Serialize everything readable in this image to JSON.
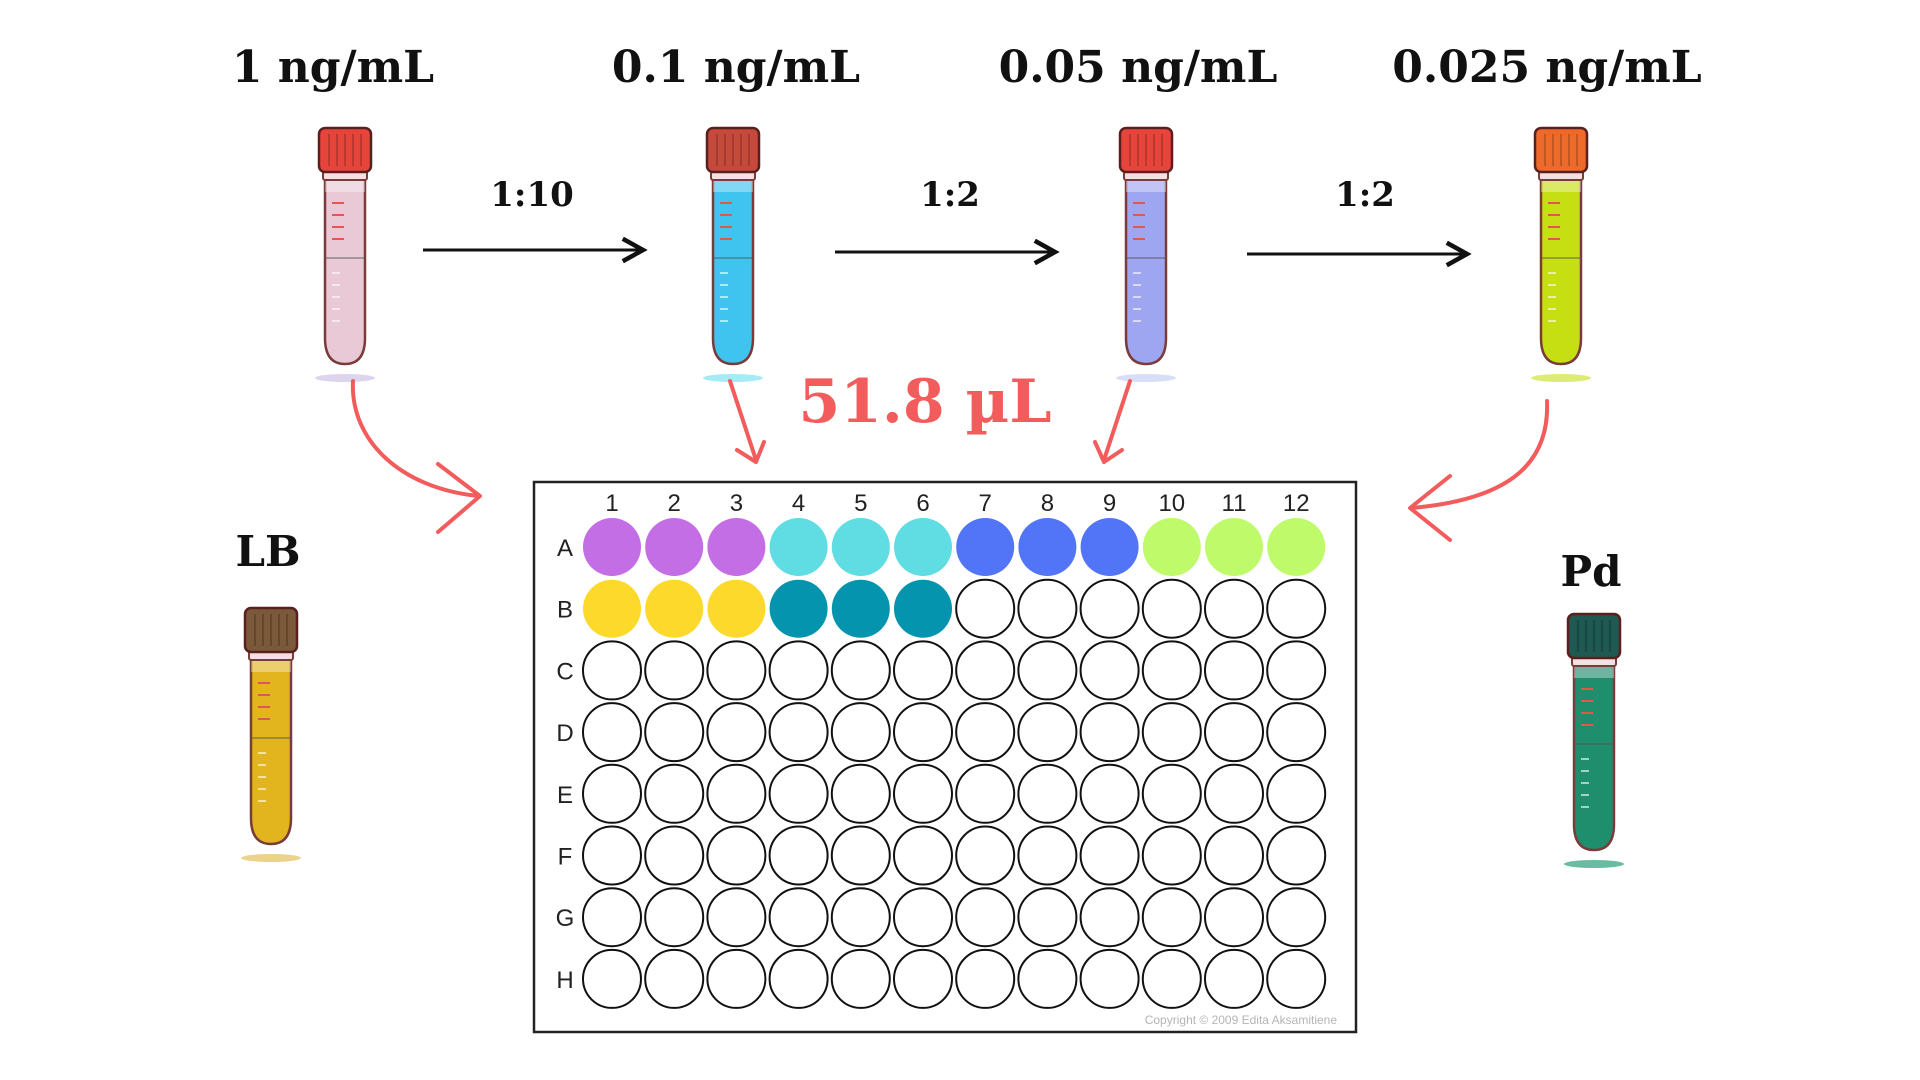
{
  "concentrations": [
    "1 ng/mL",
    "0.1 ng/mL",
    "0.05 ng/mL",
    "0.025 ng/mL"
  ],
  "dilutions": [
    "1:10",
    "1:2",
    "1:2"
  ],
  "volume": "51.8 µL",
  "side_labels": {
    "left": "LB",
    "right": "Pd"
  },
  "plate": {
    "columns": [
      "1",
      "2",
      "3",
      "4",
      "5",
      "6",
      "7",
      "8",
      "9",
      "10",
      "11",
      "12"
    ],
    "rows": [
      "A",
      "B",
      "C",
      "D",
      "E",
      "F",
      "G",
      "H"
    ],
    "copyright": "Copyright © 2009 Edita Aksamitiene",
    "filled": {
      "A": [
        "#c46ee6",
        "#c46ee6",
        "#c46ee6",
        "#5fdde3",
        "#5fdde3",
        "#5fdde3",
        "#5275f7",
        "#5275f7",
        "#5275f7",
        "#befa6a",
        "#befa6a",
        "#befa6a"
      ],
      "B": [
        "#fcd92b",
        "#fcd92b",
        "#fcd92b",
        "#0494ae",
        "#0494ae",
        "#0494ae"
      ]
    }
  },
  "colors": {
    "arrow_red": "#f25c5c",
    "tube_1": "#e9c9d6",
    "tube_2": "#3fc4ef",
    "tube_3": "#9ea6f2",
    "tube_4": "#c6df12",
    "tube_lb": "#e2b41e",
    "tube_pd": "#1f8e6d"
  },
  "icons": [
    "test-tube-icon",
    "arrow-right-icon",
    "curved-arrow-icon",
    "well-plate-icon"
  ]
}
